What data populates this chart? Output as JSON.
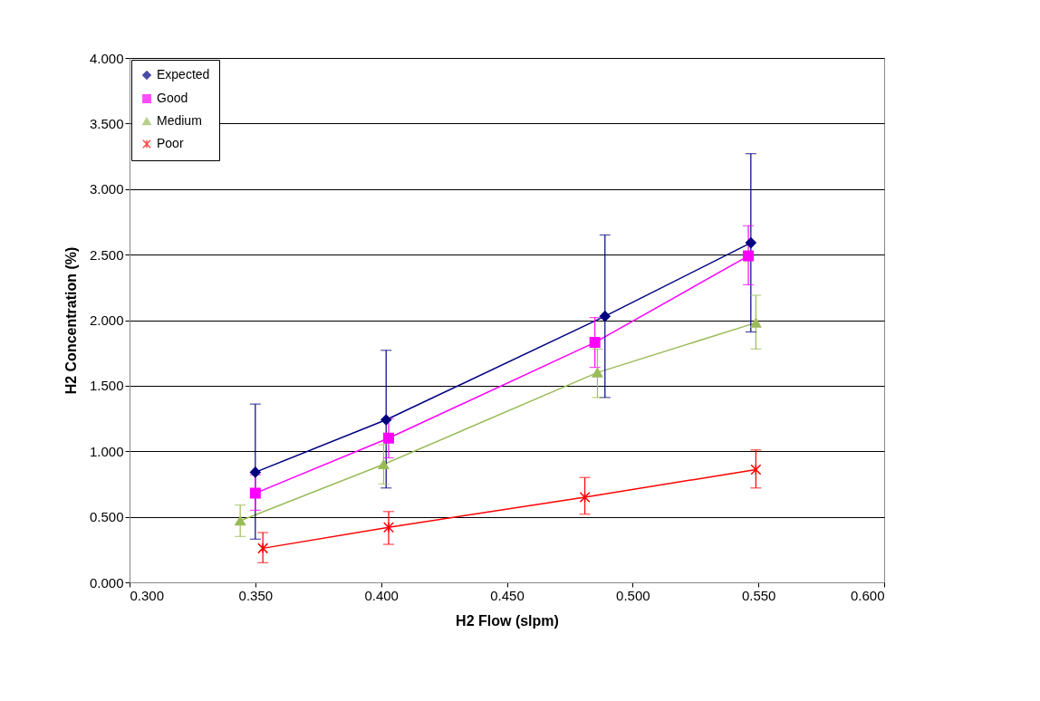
{
  "chart_data": {
    "type": "line",
    "xlabel": "H2 Flow (slpm)",
    "ylabel": "H2 Concentration (%)",
    "xlim": [
      0.3,
      0.6
    ],
    "ylim": [
      0,
      4
    ],
    "xticks": [
      {
        "value": 0.3,
        "label": "0.300"
      },
      {
        "value": 0.35,
        "label": "0.350"
      },
      {
        "value": 0.4,
        "label": "0.400"
      },
      {
        "value": 0.45,
        "label": "0.450"
      },
      {
        "value": 0.5,
        "label": "0.500"
      },
      {
        "value": 0.55,
        "label": "0.550"
      },
      {
        "value": 0.6,
        "label": "0.600"
      }
    ],
    "yticks": [
      {
        "value": 0,
        "label": "0.000"
      },
      {
        "value": 0.5,
        "label": "0.500"
      },
      {
        "value": 1,
        "label": "1.000"
      },
      {
        "value": 1.5,
        "label": "1.500"
      },
      {
        "value": 2,
        "label": "2.000"
      },
      {
        "value": 2.5,
        "label": "2.500"
      },
      {
        "value": 3,
        "label": "3.000"
      },
      {
        "value": 3.5,
        "label": "3.500"
      },
      {
        "value": 4,
        "label": "4.000"
      }
    ],
    "grid": "y",
    "legend": "top left",
    "series": [
      {
        "name": "Expected",
        "color": "#000080",
        "marker": "diamond",
        "x": [
          0.35,
          0.402,
          0.489,
          0.547
        ],
        "values": [
          0.84,
          1.24,
          2.03,
          2.59
        ],
        "errors": [
          [
            0.33,
            1.36
          ],
          [
            0.72,
            1.77
          ],
          [
            1.41,
            2.65
          ],
          [
            1.91,
            3.27
          ]
        ]
      },
      {
        "name": "Good",
        "color": "#ff00ff",
        "marker": "square",
        "x": [
          0.35,
          0.403,
          0.485,
          0.546
        ],
        "values": [
          0.68,
          1.1,
          1.83,
          2.49
        ],
        "errors": [
          [
            0.55,
            0.82
          ],
          [
            0.95,
            1.25
          ],
          [
            1.64,
            2.02
          ],
          [
            2.27,
            2.72
          ]
        ]
      },
      {
        "name": "Medium",
        "color": "#9bbb59",
        "marker": "triangle",
        "x": [
          0.344,
          0.401,
          0.486,
          0.549
        ],
        "values": [
          0.47,
          0.9,
          1.6,
          1.98
        ],
        "errors": [
          [
            0.35,
            0.59
          ],
          [
            0.75,
            1.05
          ],
          [
            1.41,
            1.78
          ],
          [
            1.78,
            2.19
          ]
        ]
      },
      {
        "name": "Poor",
        "color": "#ff0000",
        "marker": "cross",
        "x": [
          0.353,
          0.403,
          0.481,
          0.549
        ],
        "values": [
          0.26,
          0.42,
          0.65,
          0.86
        ],
        "errors": [
          [
            0.15,
            0.38
          ],
          [
            0.29,
            0.54
          ],
          [
            0.52,
            0.8
          ],
          [
            0.72,
            1.01
          ]
        ]
      }
    ]
  }
}
